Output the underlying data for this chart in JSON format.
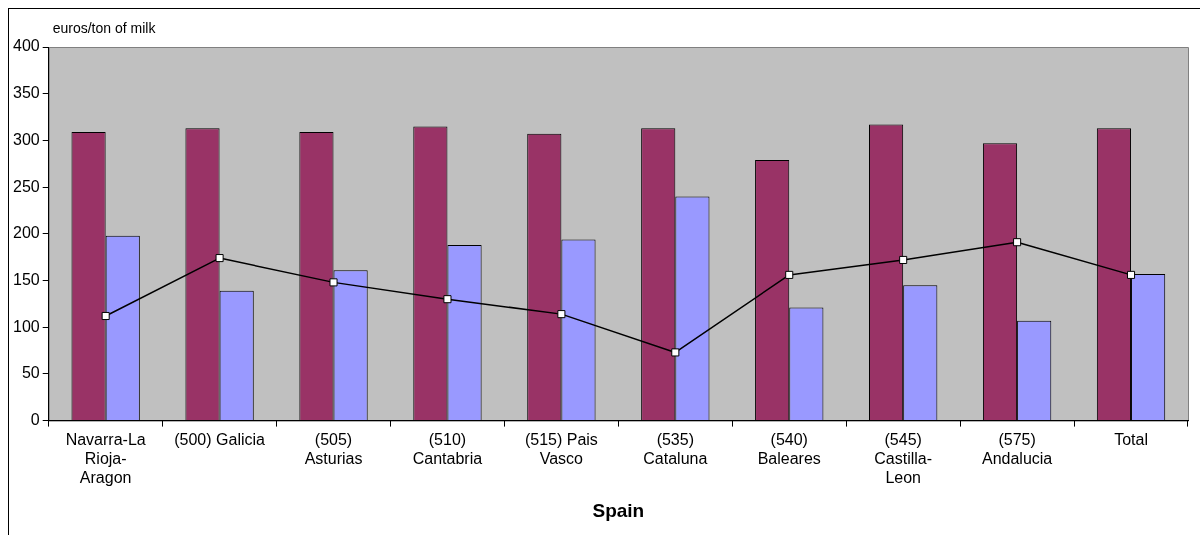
{
  "chart_data": {
    "type": "bar",
    "xlabel": "Spain",
    "ylabel": "euros/ton of milk",
    "categories": [
      "Navarra-La Rioja-Aragon",
      "(500) Galicia",
      "(505) Asturias",
      "(510) Cantabria",
      "(515) Pais Vasco",
      "(535) Cataluna",
      "(540) Baleares",
      "(545) Castilla-Leon",
      "(575) Andalucia",
      "Total"
    ],
    "series": [
      {
        "color": "#993366",
        "values": [
          309,
          313,
          309,
          315,
          307,
          313,
          279,
          317,
          297,
          313
        ]
      },
      {
        "color": "#9999ff",
        "values": [
          198,
          139,
          161,
          188,
          194,
          240,
          121,
          145,
          107,
          157
        ]
      },
      {
        "type": "line",
        "color": "#000000",
        "marker": "square",
        "values": [
          112,
          174,
          148,
          130,
          114,
          73,
          156,
          172,
          191,
          156
        ]
      }
    ],
    "ylim": [
      0,
      400
    ],
    "yticks": [
      0,
      50,
      100,
      150,
      200,
      250,
      300,
      350,
      400
    ],
    "grid": false,
    "legend": false
  }
}
